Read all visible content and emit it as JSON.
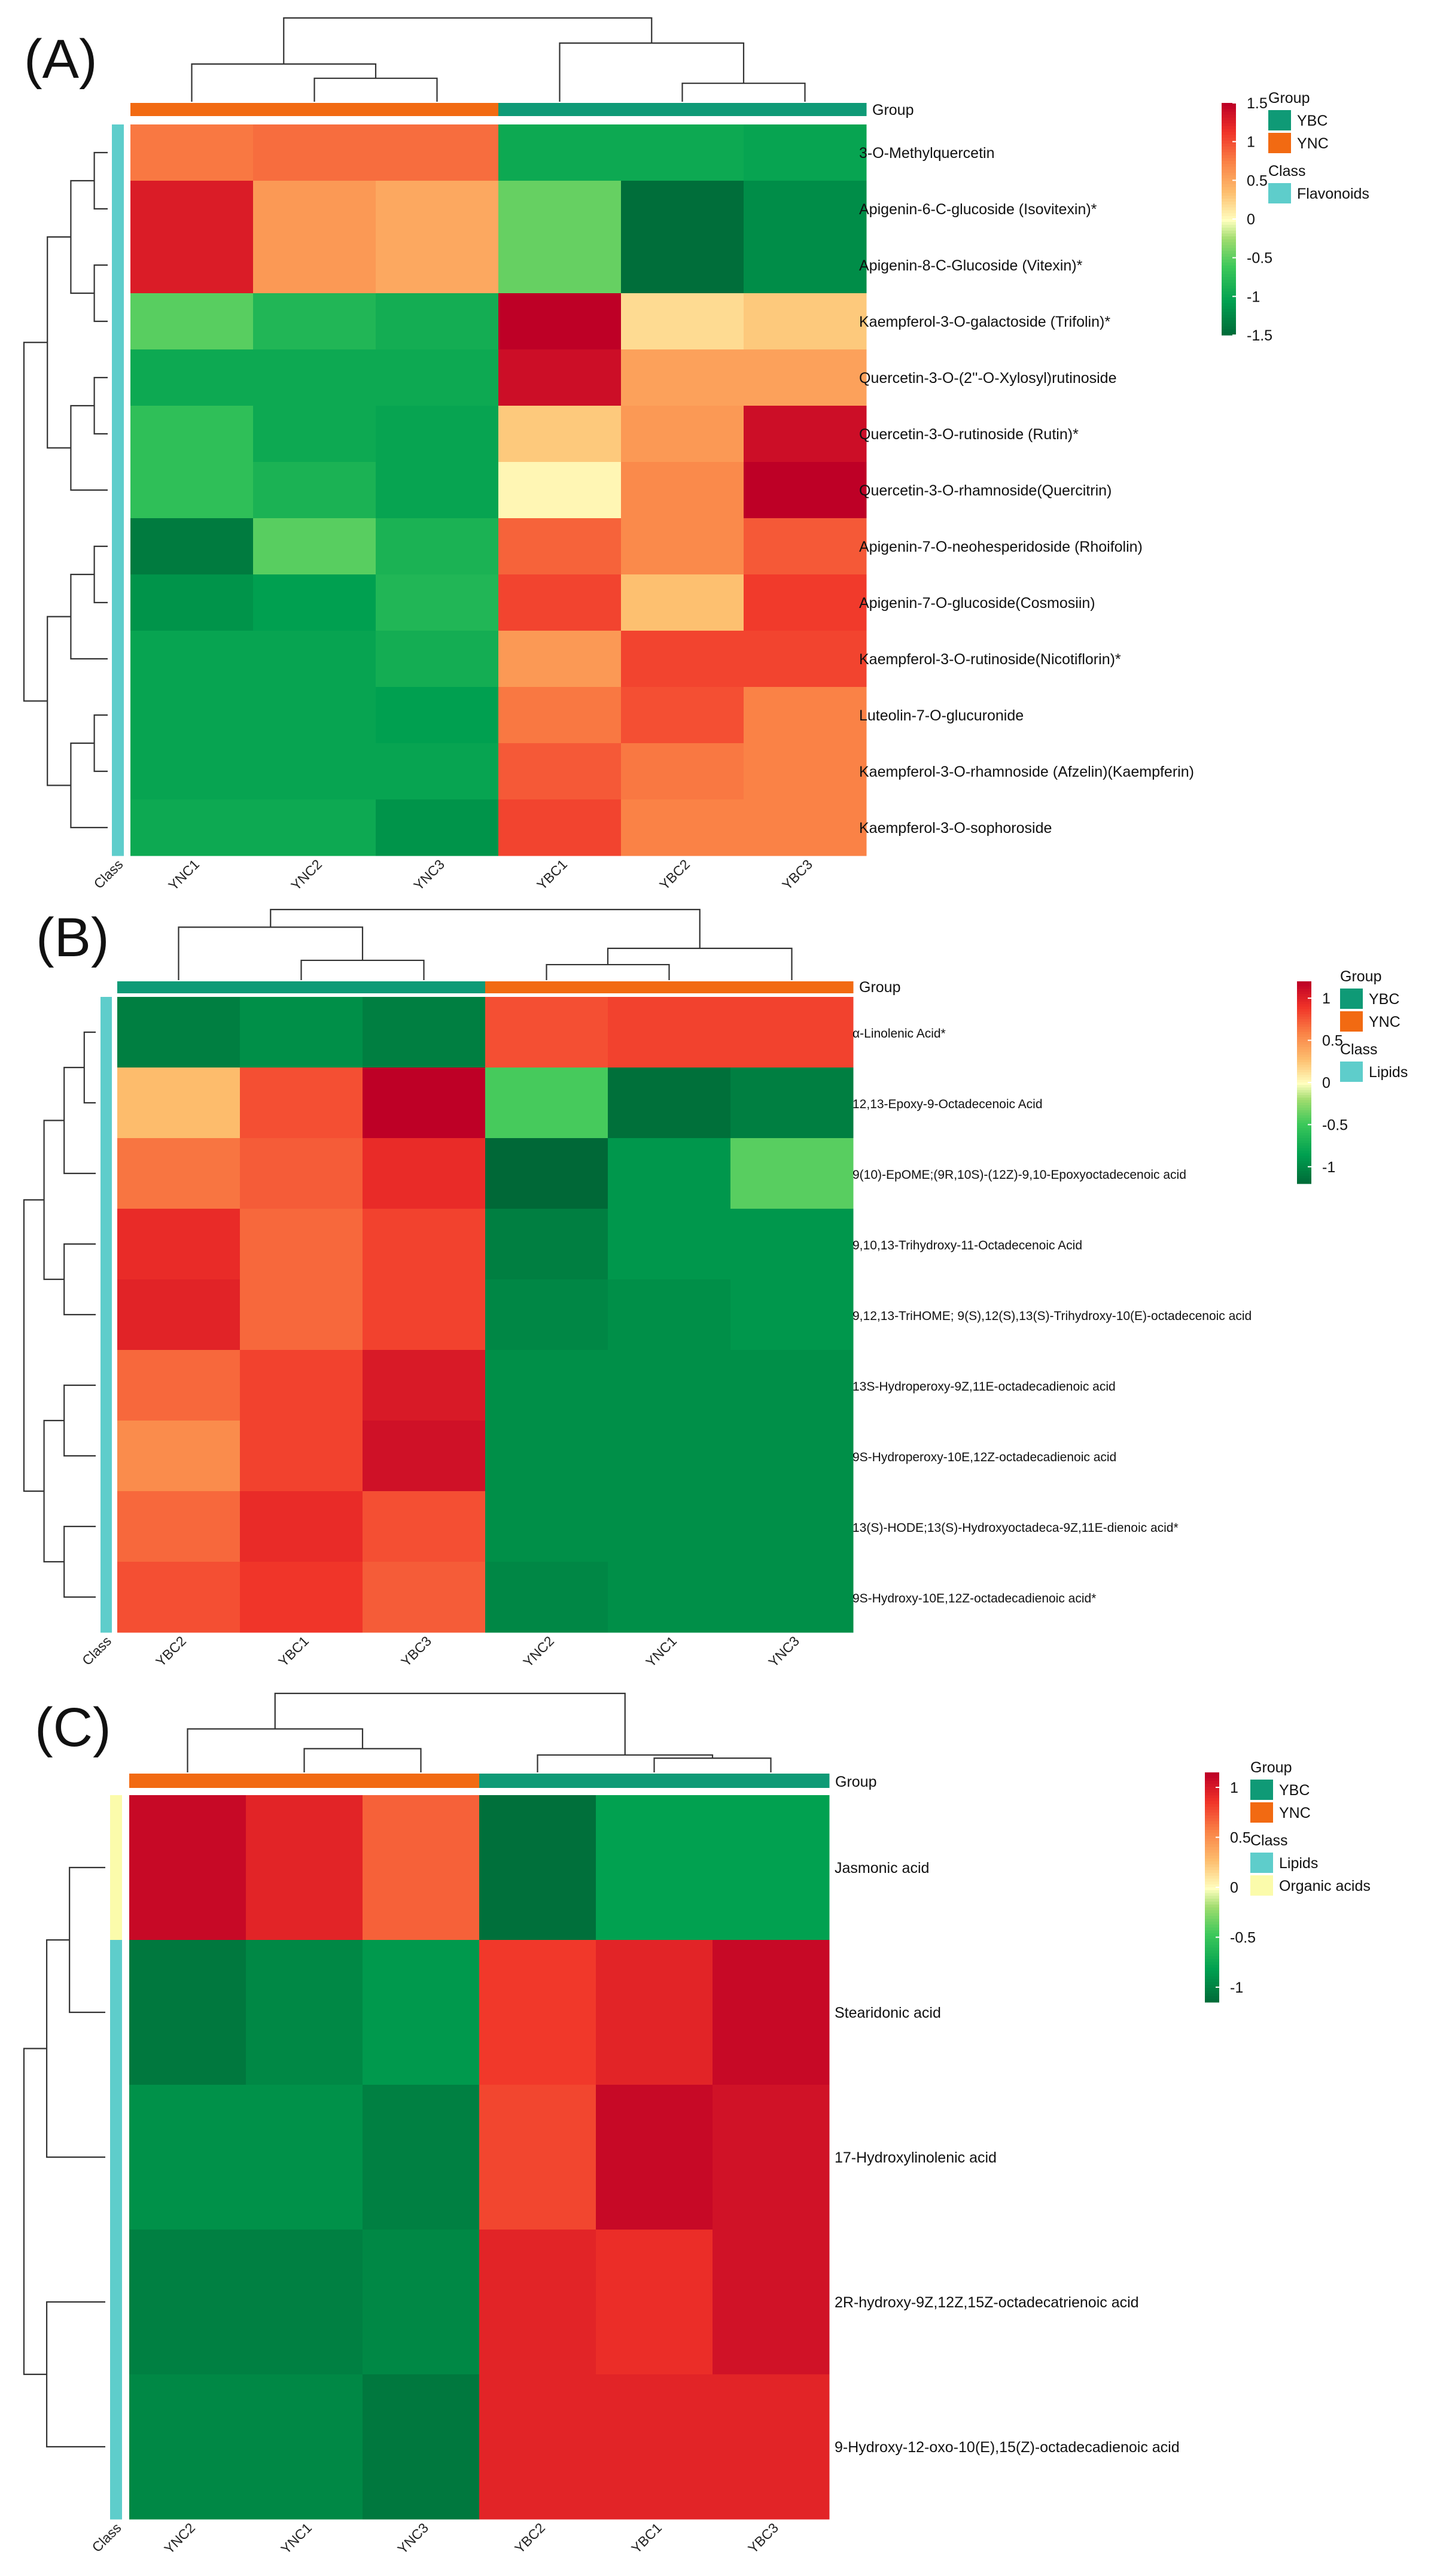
{
  "chart_data": [
    {
      "type": "heatmap",
      "panel": "(A)",
      "columns": [
        "YNC1",
        "YNC2",
        "YNC3",
        "YBC1",
        "YBC2",
        "YBC3"
      ],
      "column_groups": [
        "YNC",
        "YNC",
        "YNC",
        "YBC",
        "YBC",
        "YBC"
      ],
      "rows": [
        "3-O-Methylquercetin",
        "Apigenin-6-C-glucoside (Isovitexin)*",
        "Apigenin-8-C-Glucoside (Vitexin)*",
        "Kaempferol-3-O-galactoside (Trifolin)*",
        "Quercetin-3-O-(2''-O-Xylosyl)rutinoside",
        "Quercetin-3-O-rutinoside (Rutin)*",
        "Quercetin-3-O-rhamnoside(Quercitrin)",
        "Apigenin-7-O-neohesperidoside (Rhoifolin)",
        "Apigenin-7-O-glucoside(Cosmosiin)",
        "Kaempferol-3-O-rutinoside(Nicotiflorin)*",
        "Luteolin-7-O-glucuronide",
        "Kaempferol-3-O-rhamnoside (Afzelin)(Kaempferin)",
        "Kaempferol-3-O-sophoroside"
      ],
      "row_classes": [
        "Flavonoids",
        "Flavonoids",
        "Flavonoids",
        "Flavonoids",
        "Flavonoids",
        "Flavonoids",
        "Flavonoids",
        "Flavonoids",
        "Flavonoids",
        "Flavonoids",
        "Flavonoids",
        "Flavonoids",
        "Flavonoids"
      ],
      "values": [
        [
          0.8,
          0.85,
          0.85,
          -0.95,
          -0.95,
          -1.0
        ],
        [
          1.3,
          0.6,
          0.5,
          -0.45,
          -1.45,
          -1.2
        ],
        [
          1.3,
          0.6,
          0.5,
          -0.45,
          -1.45,
          -1.2
        ],
        [
          -0.5,
          -0.8,
          -0.9,
          1.7,
          0.2,
          0.3
        ],
        [
          -0.95,
          -0.95,
          -0.95,
          1.4,
          0.55,
          0.55
        ],
        [
          -0.7,
          -0.95,
          -1.0,
          0.3,
          0.6,
          1.4
        ],
        [
          -0.7,
          -0.85,
          -1.0,
          0.05,
          0.7,
          1.6
        ],
        [
          -1.35,
          -0.5,
          -0.85,
          0.9,
          0.7,
          0.95
        ],
        [
          -1.15,
          -1.05,
          -0.8,
          1.05,
          0.35,
          1.1
        ],
        [
          -1.0,
          -1.0,
          -0.9,
          0.6,
          1.05,
          1.05
        ],
        [
          -1.0,
          -1.0,
          -1.05,
          0.8,
          1.0,
          0.75
        ],
        [
          -1.0,
          -1.0,
          -1.0,
          0.95,
          0.8,
          0.75
        ],
        [
          -0.95,
          -0.95,
          -1.15,
          1.05,
          0.75,
          0.75
        ]
      ],
      "color_range": [
        -1.5,
        1.5
      ],
      "legend_ticks": [
        "1.5",
        "1",
        "0.5",
        "0",
        "-0.5",
        "-1",
        "-1.5"
      ],
      "legend": {
        "group_title": "Group",
        "groups": [
          {
            "name": "YBC",
            "color": "#0f9a76"
          },
          {
            "name": "YNC",
            "color": "#f26a12"
          }
        ],
        "class_title": "Class",
        "classes": [
          {
            "name": "Flavonoids",
            "color": "#5ecdcb"
          }
        ]
      },
      "annotation_label": "Group",
      "class_axis_label": "Class"
    },
    {
      "type": "heatmap",
      "panel": "(B)",
      "columns": [
        "YBC2",
        "YBC1",
        "YBC3",
        "YNC2",
        "YNC1",
        "YNC3"
      ],
      "column_groups": [
        "YBC",
        "YBC",
        "YBC",
        "YNC",
        "YNC",
        "YNC"
      ],
      "rows": [
        "α-Linolenic Acid*",
        "12,13-Epoxy-9-Octadecenoic Acid",
        "9(10)-EpOME;(9R,10S)-(12Z)-9,10-Epoxyoctadecenoic acid",
        "9,10,13-Trihydroxy-11-Octadecenoic Acid",
        "9,12,13-TriHOME; 9(S),12(S),13(S)-Trihydroxy-10(E)-octadecenoic acid",
        "13S-Hydroperoxy-9Z,11E-octadecadienoic acid",
        "9S-Hydroperoxy-10E,12Z-octadecadienoic acid",
        "13(S)-HODE;13(S)-Hydroxyoctadeca-9Z,11E-dienoic acid*",
        "9S-Hydroxy-10E,12Z-octadecadienoic acid*"
      ],
      "row_classes": [
        "Lipids",
        "Lipids",
        "Lipids",
        "Lipids",
        "Lipids",
        "Lipids",
        "Lipids",
        "Lipids",
        "Lipids"
      ],
      "values": [
        [
          -1.05,
          -0.95,
          -1.05,
          0.8,
          0.85,
          0.85
        ],
        [
          0.3,
          0.8,
          1.2,
          -0.45,
          -1.15,
          -1.05
        ],
        [
          0.65,
          0.75,
          0.95,
          -1.3,
          -0.9,
          -0.4
        ],
        [
          0.95,
          0.7,
          0.85,
          -1.05,
          -0.9,
          -0.9
        ],
        [
          1.0,
          0.7,
          0.85,
          -1.0,
          -0.95,
          -0.9
        ],
        [
          0.7,
          0.85,
          1.05,
          -0.95,
          -0.95,
          -0.95
        ],
        [
          0.55,
          0.85,
          1.1,
          -0.95,
          -0.95,
          -0.95
        ],
        [
          0.7,
          0.95,
          0.8,
          -0.95,
          -0.95,
          -0.95
        ],
        [
          0.8,
          0.9,
          0.75,
          -1.0,
          -0.95,
          -0.95
        ]
      ],
      "color_range": [
        -1.2,
        1.2
      ],
      "legend_ticks": [
        "1",
        "0.5",
        "0",
        "-0.5",
        "-1"
      ],
      "legend": {
        "group_title": "Group",
        "groups": [
          {
            "name": "YBC",
            "color": "#0f9a76"
          },
          {
            "name": "YNC",
            "color": "#f26a12"
          }
        ],
        "class_title": "Class",
        "classes": [
          {
            "name": "Lipids",
            "color": "#5ecdcb"
          }
        ]
      },
      "annotation_label": "Group",
      "class_axis_label": "Class"
    },
    {
      "type": "heatmap",
      "panel": "(C)",
      "columns": [
        "YNC2",
        "YNC1",
        "YNC3",
        "YBC2",
        "YBC1",
        "YBC3"
      ],
      "column_groups": [
        "YNC",
        "YNC",
        "YNC",
        "YBC",
        "YBC",
        "YBC"
      ],
      "rows": [
        "Jasmonic acid",
        "Stearidonic acid",
        "17-Hydroxylinolenic acid",
        "2R-hydroxy-9Z,12Z,15Z-octadecatrienoic acid",
        "9-Hydroxy-12-oxo-10(E),15(Z)-octadecadienoic acid"
      ],
      "row_classes": [
        "Organic acids",
        "Lipids",
        "Lipids",
        "Lipids",
        "Lipids"
      ],
      "values": [
        [
          1.1,
          0.95,
          0.7,
          -1.1,
          -0.8,
          -0.8
        ],
        [
          -1.05,
          -0.95,
          -0.85,
          0.85,
          0.95,
          1.1
        ],
        [
          -0.9,
          -0.9,
          -1.0,
          0.8,
          1.1,
          1.05
        ],
        [
          -1.0,
          -1.0,
          -0.95,
          0.95,
          0.9,
          1.05
        ],
        [
          -0.95,
          -0.95,
          -1.05,
          0.95,
          0.95,
          0.95
        ]
      ],
      "color_range": [
        -1.15,
        1.15
      ],
      "legend_ticks": [
        "1",
        "0.5",
        "0",
        "-0.5",
        "-1"
      ],
      "legend": {
        "group_title": "Group",
        "groups": [
          {
            "name": "YBC",
            "color": "#0f9a76"
          },
          {
            "name": "YNC",
            "color": "#f26a12"
          }
        ],
        "class_title": "Class",
        "classes": [
          {
            "name": "Lipids",
            "color": "#5ecdcb"
          },
          {
            "name": "Organic acids",
            "color": "#fbfbab"
          }
        ]
      },
      "annotation_label": "Group",
      "class_axis_label": "Class"
    }
  ]
}
